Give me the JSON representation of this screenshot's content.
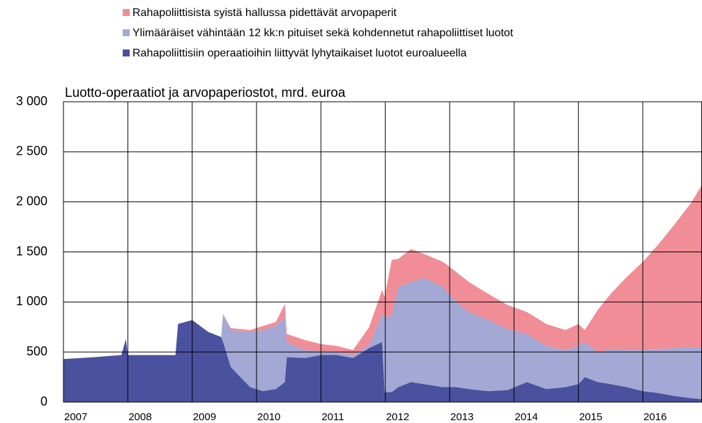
{
  "chart_data": {
    "type": "stacked_area",
    "title": "Luotto-operaatiot ja arvopaperiostot, mrd. euroa",
    "x": [
      2007.0,
      2007.5,
      2007.9,
      2007.97,
      2008.0,
      2008.5,
      2008.74,
      2008.78,
      2009.0,
      2009.25,
      2009.45,
      2009.48,
      2009.6,
      2009.9,
      2010.1,
      2010.3,
      2010.44,
      2010.47,
      2010.75,
      2011.0,
      2011.25,
      2011.5,
      2011.75,
      2011.95,
      2011.99,
      2012.1,
      2012.2,
      2012.4,
      2012.6,
      2012.9,
      2013.1,
      2013.3,
      2013.6,
      2013.9,
      2014.2,
      2014.5,
      2014.8,
      2015.0,
      2015.1,
      2015.3,
      2015.5,
      2015.75,
      2016.0,
      2016.25,
      2016.5,
      2016.75,
      2016.92
    ],
    "series": [
      {
        "name": "Rahapoliittisiin operaatioihin liittyvät lyhytaikaiset luotot euroalueella",
        "color": "#4a519e",
        "values": [
          430,
          450,
          470,
          630,
          470,
          470,
          470,
          780,
          820,
          700,
          650,
          600,
          350,
          150,
          110,
          130,
          200,
          450,
          440,
          470,
          470,
          440,
          540,
          600,
          100,
          100,
          150,
          200,
          180,
          150,
          150,
          130,
          110,
          120,
          200,
          130,
          150,
          180,
          250,
          200,
          180,
          150,
          110,
          90,
          60,
          40,
          30
        ]
      },
      {
        "name": "Ylimääräiset vähintään 12 kk:n pituiset sekä kohdennetut rahapoliittiset luotot",
        "color": "#a3a8d4",
        "values": [
          0,
          0,
          0,
          0,
          0,
          0,
          0,
          0,
          0,
          0,
          0,
          280,
          370,
          550,
          610,
          630,
          650,
          150,
          80,
          40,
          30,
          30,
          30,
          280,
          750,
          760,
          1000,
          1000,
          1060,
          1000,
          850,
          770,
          710,
          610,
          480,
          430,
          370,
          380,
          350,
          300,
          350,
          370,
          410,
          440,
          480,
          505,
          520
        ]
      },
      {
        "name": "Rahapoliittisista syistä hallussa pidettävät arvopaperit",
        "color": "#f08d96",
        "values": [
          0,
          0,
          0,
          0,
          0,
          0,
          0,
          0,
          0,
          0,
          0,
          0,
          20,
          20,
          40,
          40,
          130,
          80,
          100,
          70,
          60,
          50,
          180,
          240,
          200,
          560,
          280,
          330,
          240,
          250,
          300,
          300,
          260,
          240,
          220,
          220,
          200,
          220,
          120,
          420,
          550,
          730,
          880,
          1050,
          1240,
          1445,
          1620
        ]
      }
    ],
    "xlim": [
      2007,
      2016.92
    ],
    "xticks": [
      2007,
      2008,
      2009,
      2010,
      2011,
      2012,
      2013,
      2014,
      2015,
      2016
    ],
    "ylim": [
      0,
      3000
    ],
    "yticks": [
      0,
      {
        "value": 500,
        "label": "500"
      },
      {
        "value": 1000,
        "label": "1 000"
      },
      {
        "value": 1500,
        "label": "1 500"
      },
      {
        "value": 2000,
        "label": "2 000"
      },
      {
        "value": 2500,
        "label": "2 500"
      },
      {
        "value": 3000,
        "label": "3 000"
      }
    ],
    "grid": true,
    "legend": "top"
  }
}
